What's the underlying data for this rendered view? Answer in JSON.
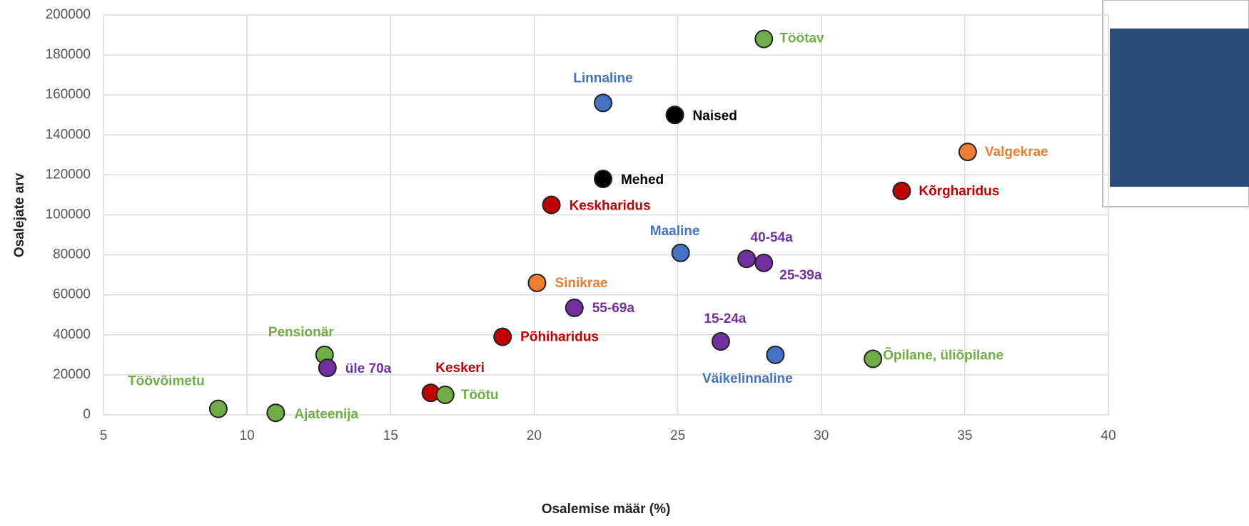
{
  "chart_data": {
    "type": "scatter",
    "xlabel": "Osalemise määr (%)",
    "ylabel": "Osalejate arv",
    "point_labels": [
      "Töötav",
      "Linnaline",
      "Naised",
      "Valgekrae",
      "Mehed",
      "Kõrgharidus",
      "Keskharidus",
      "Maaline",
      "40-54a",
      "25-39a",
      "Sinikrae",
      "55-69a",
      "Põhiharidus",
      "15-24a",
      "Väikelinnaline",
      "Õpilane, üliõpilane",
      "Pensionär",
      "üle 70a",
      "Keskeri",
      "Töötu",
      "Töövõimetu",
      "Ajateenija"
    ],
    "x": [
      28,
      22.4,
      24.9,
      35.1,
      22.4,
      32.8,
      20.6,
      25.1,
      27.4,
      28,
      20.1,
      21.4,
      18.9,
      26.5,
      28.4,
      31.8,
      12.7,
      12.8,
      16.4,
      16.9,
      9,
      11
    ],
    "values": [
      188000,
      156000,
      150000,
      131500,
      118000,
      112000,
      105000,
      81000,
      78000,
      76000,
      66000,
      53500,
      39000,
      36700,
      30000,
      28000,
      30000,
      23500,
      11000,
      10000,
      3000,
      1000
    ],
    "colors": [
      "#70ad47",
      "#4472c4",
      "#000000",
      "#ed7d31",
      "#000000",
      "#c00000",
      "#c00000",
      "#4472c4",
      "#7030a0",
      "#7030a0",
      "#ed7d31",
      "#7030a0",
      "#c00000",
      "#7030a0",
      "#4472c4",
      "#70ad47",
      "#70ad47",
      "#7030a0",
      "#c00000",
      "#70ad47",
      "#70ad47",
      "#70ad47"
    ],
    "xlim": [
      5,
      40
    ],
    "xticks": [
      5,
      10,
      15,
      20,
      25,
      30,
      35,
      40
    ],
    "ylim": [
      0,
      200000
    ],
    "yticks": [
      0,
      20000,
      40000,
      60000,
      80000,
      100000,
      120000,
      140000,
      160000,
      180000,
      200000
    ],
    "grid": true
  }
}
